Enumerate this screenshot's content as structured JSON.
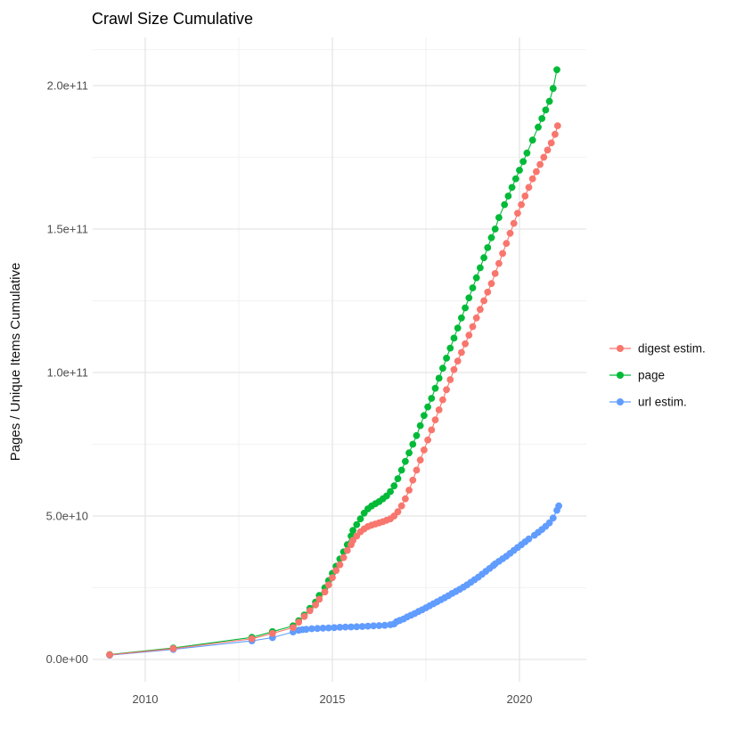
{
  "title": "Crawl Size Cumulative",
  "axes": {
    "y_title": "Pages / Unique Items Cumulative",
    "y_tick_labels": [
      "0.0e+00",
      "5.0e+10",
      "1.0e+11",
      "1.5e+11",
      "2.0e+11"
    ],
    "x_tick_labels": [
      "2010",
      "2015",
      "2020"
    ]
  },
  "legend": {
    "position": "right",
    "items": [
      {
        "label": "digest estim."
      },
      {
        "label": "page"
      },
      {
        "label": "url estim."
      }
    ]
  },
  "chart_data": {
    "type": "scatter",
    "title": "Crawl Size Cumulative",
    "xlabel": "",
    "ylabel": "Pages / Unique Items Cumulative",
    "xlim": [
      2008.6,
      2021.8
    ],
    "ylim_unit_1e9": [
      -8,
      217
    ],
    "values_unit": "billions (value 205.5 means 2.055e11 pages)",
    "grid": {
      "x_major": [
        2010,
        2015,
        2020
      ],
      "x_minor": [
        2012.5,
        2017.5
      ],
      "y_major": [
        0,
        50,
        100,
        150,
        200
      ],
      "y_minor": [
        25,
        75,
        125,
        175,
        212.5
      ]
    },
    "legend_position": "right",
    "series": [
      {
        "name": "digest estim.",
        "color": "#F8766D",
        "points": [
          [
            2009.05,
            1.6
          ],
          [
            2010.75,
            3.8
          ],
          [
            2012.85,
            7.2
          ],
          [
            2013.4,
            9.1
          ],
          [
            2013.95,
            11.1
          ],
          [
            2014.1,
            13
          ],
          [
            2014.25,
            15
          ],
          [
            2014.4,
            17
          ],
          [
            2014.55,
            19
          ],
          [
            2014.65,
            21
          ],
          [
            2014.8,
            23.5
          ],
          [
            2014.9,
            26
          ],
          [
            2015.0,
            28.5
          ],
          [
            2015.1,
            31
          ],
          [
            2015.2,
            33
          ],
          [
            2015.3,
            35.5
          ],
          [
            2015.4,
            38
          ],
          [
            2015.5,
            40
          ],
          [
            2015.55,
            41.5
          ],
          [
            2015.65,
            43
          ],
          [
            2015.75,
            44.5
          ],
          [
            2015.85,
            45.5
          ],
          [
            2015.95,
            46.3
          ],
          [
            2016.05,
            46.8
          ],
          [
            2016.15,
            47.2
          ],
          [
            2016.25,
            47.6
          ],
          [
            2016.35,
            48
          ],
          [
            2016.45,
            48.5
          ],
          [
            2016.55,
            49
          ],
          [
            2016.65,
            50
          ],
          [
            2016.75,
            51.5
          ],
          [
            2016.85,
            53.5
          ],
          [
            2016.95,
            56
          ],
          [
            2017.05,
            59
          ],
          [
            2017.15,
            62.5
          ],
          [
            2017.25,
            66
          ],
          [
            2017.35,
            69.5
          ],
          [
            2017.45,
            73
          ],
          [
            2017.55,
            76.5
          ],
          [
            2017.65,
            80
          ],
          [
            2017.75,
            83.5
          ],
          [
            2017.85,
            87
          ],
          [
            2017.95,
            90.5
          ],
          [
            2018.05,
            94
          ],
          [
            2018.15,
            97.5
          ],
          [
            2018.25,
            101
          ],
          [
            2018.35,
            104
          ],
          [
            2018.45,
            107
          ],
          [
            2018.55,
            110
          ],
          [
            2018.65,
            113
          ],
          [
            2018.75,
            116
          ],
          [
            2018.85,
            119
          ],
          [
            2018.95,
            122
          ],
          [
            2019.05,
            125
          ],
          [
            2019.15,
            128
          ],
          [
            2019.25,
            131
          ],
          [
            2019.35,
            134.5
          ],
          [
            2019.45,
            138
          ],
          [
            2019.55,
            141.5
          ],
          [
            2019.65,
            145
          ],
          [
            2019.75,
            148.5
          ],
          [
            2019.85,
            152
          ],
          [
            2019.95,
            155.5
          ],
          [
            2020.05,
            158.5
          ],
          [
            2020.15,
            161.5
          ],
          [
            2020.25,
            164.5
          ],
          [
            2020.35,
            167.5
          ],
          [
            2020.45,
            170
          ],
          [
            2020.55,
            172.5
          ],
          [
            2020.65,
            175
          ],
          [
            2020.75,
            177.5
          ],
          [
            2020.85,
            180
          ],
          [
            2020.95,
            183
          ],
          [
            2021.02,
            186
          ]
        ]
      },
      {
        "name": "page",
        "color": "#00BA38",
        "points": [
          [
            2009.05,
            1.7
          ],
          [
            2010.75,
            4.0
          ],
          [
            2012.85,
            7.7
          ],
          [
            2013.4,
            9.7
          ],
          [
            2013.95,
            11.7
          ],
          [
            2014.1,
            13.5
          ],
          [
            2014.25,
            15.5
          ],
          [
            2014.4,
            17.8
          ],
          [
            2014.55,
            20
          ],
          [
            2014.65,
            22.3
          ],
          [
            2014.8,
            25
          ],
          [
            2014.9,
            27.5
          ],
          [
            2015.0,
            30
          ],
          [
            2015.1,
            32.5
          ],
          [
            2015.2,
            35
          ],
          [
            2015.3,
            37.5
          ],
          [
            2015.4,
            40
          ],
          [
            2015.5,
            43
          ],
          [
            2015.55,
            45
          ],
          [
            2015.65,
            47
          ],
          [
            2015.75,
            49
          ],
          [
            2015.85,
            51
          ],
          [
            2015.95,
            52.5
          ],
          [
            2016.05,
            53.5
          ],
          [
            2016.15,
            54.3
          ],
          [
            2016.25,
            55
          ],
          [
            2016.35,
            56
          ],
          [
            2016.45,
            57
          ],
          [
            2016.55,
            58.5
          ],
          [
            2016.65,
            60.5
          ],
          [
            2016.75,
            63
          ],
          [
            2016.85,
            66
          ],
          [
            2016.95,
            69
          ],
          [
            2017.05,
            72
          ],
          [
            2017.15,
            75
          ],
          [
            2017.25,
            78
          ],
          [
            2017.35,
            81.5
          ],
          [
            2017.45,
            85
          ],
          [
            2017.55,
            88
          ],
          [
            2017.65,
            91
          ],
          [
            2017.75,
            94.5
          ],
          [
            2017.85,
            98
          ],
          [
            2017.95,
            101.5
          ],
          [
            2018.05,
            105
          ],
          [
            2018.15,
            108.5
          ],
          [
            2018.25,
            112
          ],
          [
            2018.35,
            115.5
          ],
          [
            2018.45,
            119
          ],
          [
            2018.55,
            122.5
          ],
          [
            2018.65,
            126
          ],
          [
            2018.75,
            129.5
          ],
          [
            2018.85,
            133
          ],
          [
            2018.95,
            136.5
          ],
          [
            2019.05,
            140
          ],
          [
            2019.15,
            143.5
          ],
          [
            2019.25,
            147
          ],
          [
            2019.35,
            150
          ],
          [
            2019.45,
            154
          ],
          [
            2019.6,
            158.5
          ],
          [
            2019.7,
            161.5
          ],
          [
            2019.8,
            164.5
          ],
          [
            2019.9,
            167.5
          ],
          [
            2020.0,
            170.5
          ],
          [
            2020.1,
            173.5
          ],
          [
            2020.2,
            176.5
          ],
          [
            2020.35,
            181
          ],
          [
            2020.5,
            185.5
          ],
          [
            2020.6,
            188.5
          ],
          [
            2020.7,
            191.5
          ],
          [
            2020.8,
            194.5
          ],
          [
            2020.9,
            199
          ],
          [
            2021.0,
            205.5
          ]
        ]
      },
      {
        "name": "url estim.",
        "color": "#619CFF",
        "points": [
          [
            2009.05,
            1.5
          ],
          [
            2010.75,
            3.5
          ],
          [
            2012.85,
            6.5
          ],
          [
            2013.4,
            7.6
          ],
          [
            2013.95,
            9.6
          ],
          [
            2014.1,
            10.2
          ],
          [
            2014.2,
            10.4
          ],
          [
            2014.3,
            10.5
          ],
          [
            2014.45,
            10.7
          ],
          [
            2014.6,
            10.8
          ],
          [
            2014.75,
            10.9
          ],
          [
            2014.9,
            11.0
          ],
          [
            2015.05,
            11.1
          ],
          [
            2015.2,
            11.2
          ],
          [
            2015.35,
            11.3
          ],
          [
            2015.5,
            11.35
          ],
          [
            2015.65,
            11.4
          ],
          [
            2015.8,
            11.5
          ],
          [
            2015.95,
            11.6
          ],
          [
            2016.1,
            11.7
          ],
          [
            2016.25,
            11.8
          ],
          [
            2016.4,
            11.9
          ],
          [
            2016.55,
            12.1
          ],
          [
            2016.65,
            12.4
          ],
          [
            2016.72,
            13.2
          ],
          [
            2016.8,
            13.6
          ],
          [
            2016.9,
            14.1
          ],
          [
            2017.0,
            14.8
          ],
          [
            2017.1,
            15.4
          ],
          [
            2017.2,
            16.0
          ],
          [
            2017.3,
            16.7
          ],
          [
            2017.4,
            17.3
          ],
          [
            2017.5,
            18.0
          ],
          [
            2017.6,
            18.7
          ],
          [
            2017.7,
            19.4
          ],
          [
            2017.8,
            20.1
          ],
          [
            2017.9,
            20.8
          ],
          [
            2018.0,
            21.5
          ],
          [
            2018.1,
            22.2
          ],
          [
            2018.2,
            23.0
          ],
          [
            2018.3,
            23.7
          ],
          [
            2018.4,
            24.4
          ],
          [
            2018.5,
            25.2
          ],
          [
            2018.6,
            26.0
          ],
          [
            2018.7,
            26.9
          ],
          [
            2018.8,
            27.8
          ],
          [
            2018.9,
            28.7
          ],
          [
            2019.0,
            29.7
          ],
          [
            2019.1,
            30.7
          ],
          [
            2019.2,
            31.7
          ],
          [
            2019.3,
            32.7
          ],
          [
            2019.35,
            33.3
          ],
          [
            2019.45,
            34.2
          ],
          [
            2019.55,
            35.1
          ],
          [
            2019.65,
            36.0
          ],
          [
            2019.75,
            37.0
          ],
          [
            2019.85,
            38.0
          ],
          [
            2019.95,
            39.0
          ],
          [
            2020.05,
            40.0
          ],
          [
            2020.15,
            41.0
          ],
          [
            2020.25,
            42.0
          ],
          [
            2020.4,
            43.3
          ],
          [
            2020.5,
            44.3
          ],
          [
            2020.6,
            45.3
          ],
          [
            2020.7,
            46.4
          ],
          [
            2020.8,
            47.6
          ],
          [
            2020.9,
            49.3
          ],
          [
            2021.0,
            52.0
          ],
          [
            2021.05,
            53.5
          ]
        ]
      }
    ]
  }
}
